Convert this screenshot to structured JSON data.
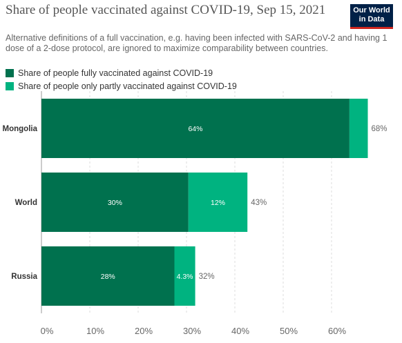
{
  "header": {
    "title": "Share of people vaccinated against COVID-19, Sep 15, 2021",
    "subtitle": "Alternative definitions of a full vaccination, e.g. having been infected with SARS-CoV-2 and having 1 dose of a 2-dose protocol, are ignored to maximize comparability between countries.",
    "logo_line1": "Our World",
    "logo_line2": "in Data"
  },
  "colors": {
    "fully": "#00714e",
    "partly": "#00b380",
    "grid": "#dddddd",
    "text": "#333333",
    "axis_text": "#666666"
  },
  "chart_data": {
    "type": "bar",
    "orientation": "horizontal",
    "stacked": true,
    "categories": [
      "Mongolia",
      "World",
      "Russia"
    ],
    "series": [
      {
        "name": "Share of people fully vaccinated against COVID-19",
        "values": [
          63.7,
          30.4,
          27.5
        ],
        "labels": [
          "64%",
          "30%",
          "28%"
        ]
      },
      {
        "name": "Share of people only partly vaccinated against COVID-19",
        "values": [
          3.8,
          12.2,
          4.3
        ],
        "labels": [
          "",
          "12%",
          "4.3%"
        ]
      }
    ],
    "totals": [
      "68%",
      "43%",
      "32%"
    ],
    "xlim": [
      0,
      68
    ],
    "xticks": [
      0,
      10,
      20,
      30,
      40,
      50,
      60
    ],
    "xtick_labels": [
      "0%",
      "10%",
      "20%",
      "30%",
      "40%",
      "50%",
      "60%"
    ],
    "grid": true,
    "legend_position": "top-left"
  }
}
